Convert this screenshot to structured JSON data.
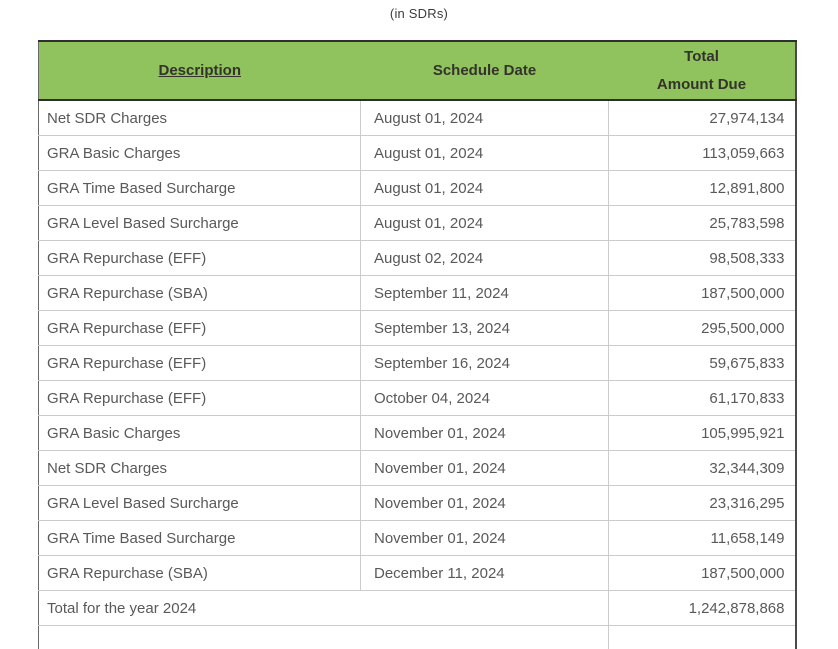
{
  "caption": "(in SDRs)",
  "colors": {
    "header_bg": "#90c35e",
    "header_text": "#33332b",
    "body_text": "#595959",
    "outer_border": "#2e2e2e",
    "inner_border": "#cccccc"
  },
  "table": {
    "headers": {
      "description": "Description",
      "schedule_date": "Schedule Date",
      "total_line1": "Total",
      "total_line2": "Amount Due"
    },
    "rows": [
      {
        "description": "Net SDR Charges",
        "schedule_date": "August 01, 2024",
        "amount": "27,974,134"
      },
      {
        "description": "GRA Basic Charges",
        "schedule_date": "August 01, 2024",
        "amount": "113,059,663"
      },
      {
        "description": "GRA Time Based Surcharge",
        "schedule_date": "August 01, 2024",
        "amount": "12,891,800"
      },
      {
        "description": "GRA Level Based Surcharge",
        "schedule_date": "August 01, 2024",
        "amount": "25,783,598"
      },
      {
        "description": "GRA Repurchase (EFF)",
        "schedule_date": "August 02, 2024",
        "amount": "98,508,333"
      },
      {
        "description": "GRA Repurchase (SBA)",
        "schedule_date": "September 11, 2024",
        "amount": "187,500,000"
      },
      {
        "description": "GRA Repurchase (EFF)",
        "schedule_date": "September 13, 2024",
        "amount": "295,500,000"
      },
      {
        "description": "GRA Repurchase (EFF)",
        "schedule_date": "September 16, 2024",
        "amount": "59,675,833"
      },
      {
        "description": "GRA Repurchase (EFF)",
        "schedule_date": "October 04, 2024",
        "amount": "61,170,833"
      },
      {
        "description": "GRA Basic Charges",
        "schedule_date": "November 01, 2024",
        "amount": "105,995,921"
      },
      {
        "description": "Net SDR Charges",
        "schedule_date": "November 01, 2024",
        "amount": "32,344,309"
      },
      {
        "description": "GRA Level Based Surcharge",
        "schedule_date": "November 01, 2024",
        "amount": "23,316,295"
      },
      {
        "description": "GRA Time Based Surcharge",
        "schedule_date": "November 01, 2024",
        "amount": "11,658,149"
      },
      {
        "description": "GRA Repurchase (SBA)",
        "schedule_date": "December 11, 2024",
        "amount": "187,500,000"
      }
    ],
    "total_row": {
      "label": "Total for the year 2024",
      "amount": "1,242,878,868"
    }
  },
  "chart_data": {
    "type": "table",
    "title": "(in SDRs)",
    "columns": [
      "Description",
      "Schedule Date",
      "Total Amount Due"
    ],
    "rows": [
      [
        "Net SDR Charges",
        "August 01, 2024",
        27974134
      ],
      [
        "GRA Basic Charges",
        "August 01, 2024",
        113059663
      ],
      [
        "GRA Time Based Surcharge",
        "August 01, 2024",
        12891800
      ],
      [
        "GRA Level Based Surcharge",
        "August 01, 2024",
        25783598
      ],
      [
        "GRA Repurchase (EFF)",
        "August 02, 2024",
        98508333
      ],
      [
        "GRA Repurchase (SBA)",
        "September 11, 2024",
        187500000
      ],
      [
        "GRA Repurchase (EFF)",
        "September 13, 2024",
        295500000
      ],
      [
        "GRA Repurchase (EFF)",
        "September 16, 2024",
        59675833
      ],
      [
        "GRA Repurchase (EFF)",
        "October 04, 2024",
        61170833
      ],
      [
        "GRA Basic Charges",
        "November 01, 2024",
        105995921
      ],
      [
        "Net SDR Charges",
        "November 01, 2024",
        32344309
      ],
      [
        "GRA Level Based Surcharge",
        "November 01, 2024",
        23316295
      ],
      [
        "GRA Time Based Surcharge",
        "November 01, 2024",
        11658149
      ],
      [
        "GRA Repurchase (SBA)",
        "December 11, 2024",
        187500000
      ]
    ],
    "footer": [
      "Total for the year 2024",
      "",
      1242878868
    ]
  }
}
